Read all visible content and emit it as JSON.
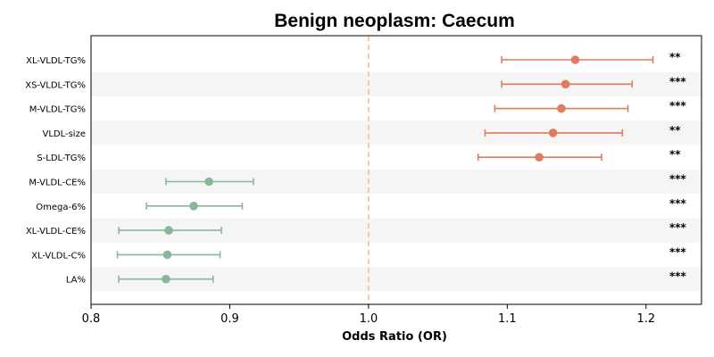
{
  "chart_data": {
    "type": "forest",
    "title": "Benign neoplasm: Caecum",
    "xlabel": "Odds Ratio (OR)",
    "ylabel": "",
    "xlim": [
      0.8,
      1.24
    ],
    "xticks": [
      "0.8",
      "0.9",
      "1.0",
      "1.1",
      "1.2"
    ],
    "reference_line": 1.0,
    "reference_color": "#f5c08a",
    "colors": {
      "positive": "#e07b5f",
      "negative": "#88b89a",
      "band": "#f5f5f5"
    },
    "rows": [
      {
        "label": "XL-VLDL-TG%",
        "or": 1.149,
        "lo": 1.096,
        "hi": 1.205,
        "sig": "**",
        "group": "positive"
      },
      {
        "label": "XS-VLDL-TG%",
        "or": 1.142,
        "lo": 1.096,
        "hi": 1.19,
        "sig": "***",
        "group": "positive"
      },
      {
        "label": "M-VLDL-TG%",
        "or": 1.139,
        "lo": 1.091,
        "hi": 1.187,
        "sig": "***",
        "group": "positive"
      },
      {
        "label": "VLDL-size",
        "or": 1.133,
        "lo": 1.084,
        "hi": 1.183,
        "sig": "**",
        "group": "positive"
      },
      {
        "label": "S-LDL-TG%",
        "or": 1.123,
        "lo": 1.079,
        "hi": 1.168,
        "sig": "**",
        "group": "positive"
      },
      {
        "label": "M-VLDL-CE%",
        "or": 0.885,
        "lo": 0.854,
        "hi": 0.917,
        "sig": "***",
        "group": "negative"
      },
      {
        "label": "Omega-6%",
        "or": 0.874,
        "lo": 0.84,
        "hi": 0.909,
        "sig": "***",
        "group": "negative"
      },
      {
        "label": "XL-VLDL-CE%",
        "or": 0.856,
        "lo": 0.82,
        "hi": 0.894,
        "sig": "***",
        "group": "negative"
      },
      {
        "label": "XL-VLDL-C%",
        "or": 0.855,
        "lo": 0.819,
        "hi": 0.893,
        "sig": "***",
        "group": "negative"
      },
      {
        "label": "LA%",
        "or": 0.854,
        "lo": 0.82,
        "hi": 0.888,
        "sig": "***",
        "group": "negative"
      }
    ]
  }
}
